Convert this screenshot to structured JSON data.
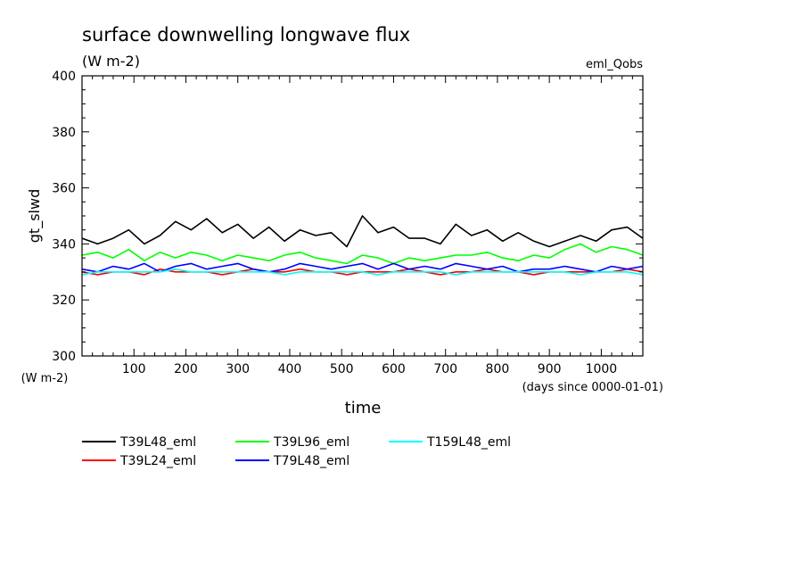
{
  "chart_data": {
    "type": "line",
    "title": "surface downwelling longwave flux",
    "units": "(W m-2)",
    "experiment": "eml_Qobs",
    "ylabel": "gt_slwd",
    "yunits": "(W m-2)",
    "xlabel": "time",
    "xunits": "(days since 0000-01-01)",
    "xlim": [
      0,
      1080
    ],
    "ylim": [
      300,
      400
    ],
    "xticks": [
      100,
      200,
      300,
      400,
      500,
      600,
      700,
      800,
      900,
      1000
    ],
    "yticks": [
      300,
      320,
      340,
      360,
      380,
      400
    ],
    "x": [
      0,
      30,
      60,
      90,
      120,
      150,
      180,
      210,
      240,
      270,
      300,
      330,
      360,
      390,
      420,
      450,
      480,
      510,
      540,
      570,
      600,
      630,
      660,
      690,
      720,
      750,
      780,
      810,
      840,
      870,
      900,
      930,
      960,
      990,
      1020,
      1050,
      1080
    ],
    "series": [
      {
        "name": "T39L48_eml",
        "color": "#000000",
        "values": [
          342,
          340,
          342,
          345,
          340,
          343,
          348,
          345,
          349,
          344,
          347,
          342,
          346,
          341,
          345,
          343,
          344,
          339,
          350,
          344,
          346,
          342,
          342,
          340,
          347,
          343,
          345,
          341,
          344,
          341,
          339,
          341,
          343,
          341,
          345,
          346,
          342
        ]
      },
      {
        "name": "T39L24_eml",
        "color": "#ff0000",
        "values": [
          330,
          329,
          330,
          330,
          329,
          331,
          330,
          330,
          330,
          329,
          330,
          331,
          330,
          330,
          331,
          330,
          330,
          329,
          330,
          330,
          330,
          331,
          330,
          329,
          330,
          330,
          331,
          330,
          330,
          329,
          330,
          330,
          330,
          330,
          330,
          331,
          330
        ]
      },
      {
        "name": "T39L96_eml",
        "color": "#00ff00",
        "values": [
          336,
          337,
          335,
          338,
          334,
          337,
          335,
          337,
          336,
          334,
          336,
          335,
          334,
          336,
          337,
          335,
          334,
          333,
          336,
          335,
          333,
          335,
          334,
          335,
          336,
          336,
          337,
          335,
          334,
          336,
          335,
          338,
          340,
          337,
          339,
          338,
          336
        ]
      },
      {
        "name": "T79L48_eml",
        "color": "#0000ff",
        "values": [
          331,
          330,
          332,
          331,
          333,
          330,
          332,
          333,
          331,
          332,
          333,
          331,
          330,
          331,
          333,
          332,
          331,
          332,
          333,
          331,
          333,
          331,
          332,
          331,
          333,
          332,
          331,
          332,
          330,
          331,
          331,
          332,
          331,
          330,
          332,
          331,
          332
        ]
      },
      {
        "name": "T159L48_eml",
        "color": "#00ffff",
        "values": [
          329,
          330,
          330,
          330,
          330,
          330,
          331,
          330,
          330,
          330,
          330,
          330,
          330,
          329,
          330,
          330,
          330,
          330,
          330,
          329,
          330,
          330,
          330,
          330,
          329,
          330,
          330,
          330,
          330,
          330,
          330,
          330,
          329,
          330,
          330,
          330,
          329
        ]
      }
    ],
    "grid": false,
    "legend_position": "bottom-left"
  }
}
